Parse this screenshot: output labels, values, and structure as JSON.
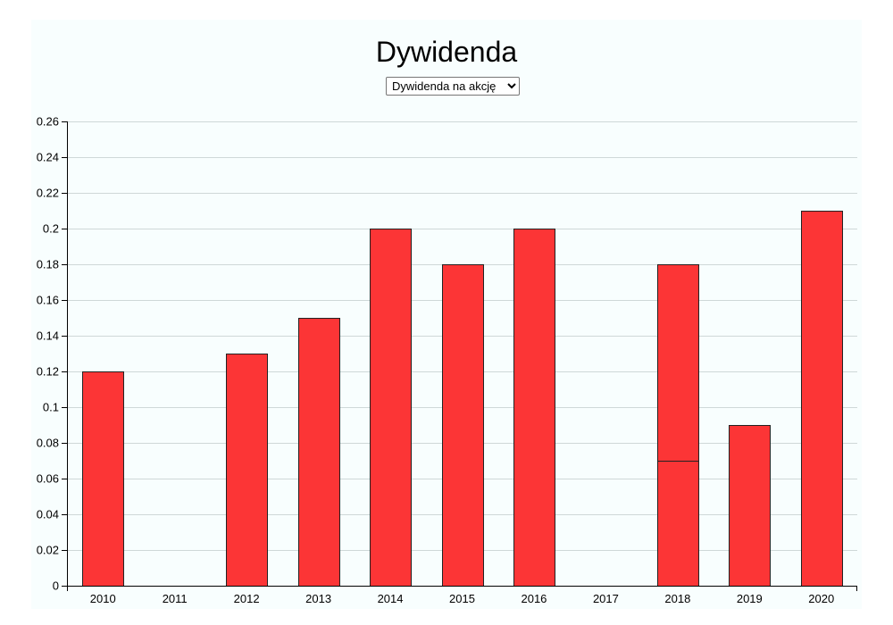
{
  "title": "Dywidenda",
  "select": {
    "selected": "Dywidenda na akcję",
    "options": [
      "Dywidenda na akcję"
    ]
  },
  "colors": {
    "bar_fill": "#fc3536",
    "bar_stroke": "#222222",
    "grid": "#cfd8d8",
    "panel_bg": "#f8fefe"
  },
  "chart_data": {
    "type": "bar",
    "title": "Dywidenda",
    "xlabel": "",
    "ylabel": "",
    "categories": [
      "2010",
      "2011",
      "2012",
      "2013",
      "2014",
      "2015",
      "2016",
      "2017",
      "2018",
      "2019",
      "2020"
    ],
    "segments": [
      [
        0.12
      ],
      [],
      [
        0.13
      ],
      [
        0.15
      ],
      [
        0.2
      ],
      [
        0.18
      ],
      [
        0.2
      ],
      [],
      [
        0.07,
        0.11
      ],
      [
        0.09
      ],
      [
        0.21
      ]
    ],
    "ylim": [
      0,
      0.26
    ],
    "yticks": [
      "0",
      "0.02",
      "0.04",
      "0.06",
      "0.08",
      "0.1",
      "0.12",
      "0.14",
      "0.16",
      "0.18",
      "0.2",
      "0.22",
      "0.24",
      "0.26"
    ],
    "grid": true,
    "legend": "none"
  }
}
